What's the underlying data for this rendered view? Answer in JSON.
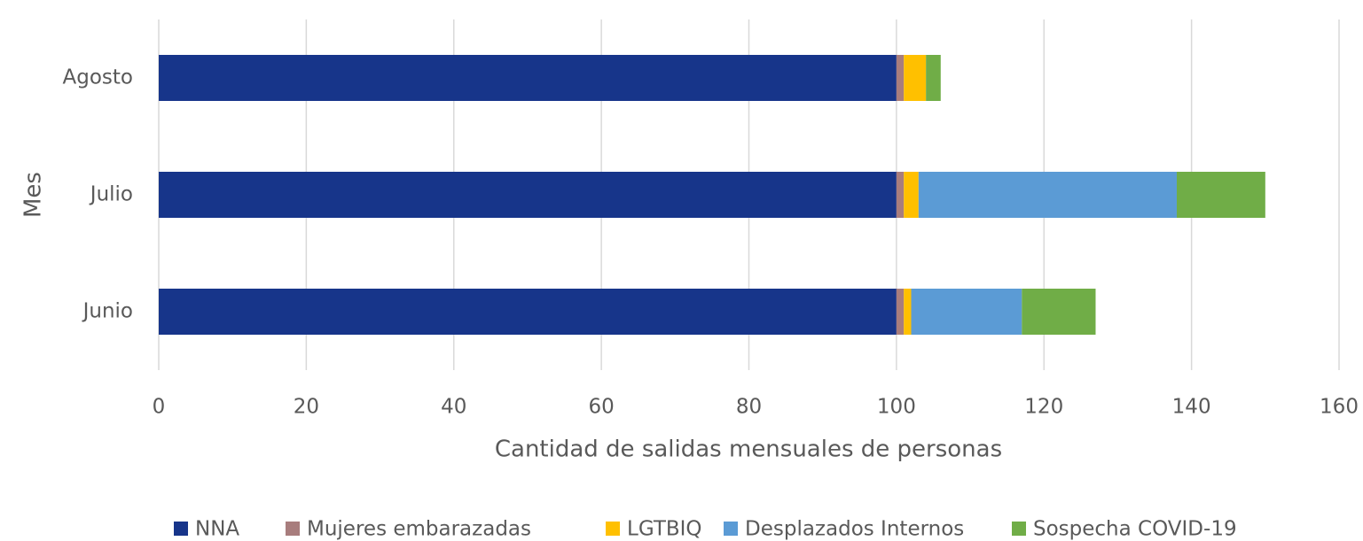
{
  "chart_data": {
    "type": "stacked-bar-horizontal",
    "x_axis_label": "Cantidad de salidas mensuales de personas",
    "y_axis_label": "Mes",
    "categories": [
      "Junio",
      "Julio",
      "Agosto"
    ],
    "series": [
      {
        "name": "NNA",
        "color": "#17358a",
        "values": [
          100,
          100,
          100
        ]
      },
      {
        "name": "Mujeres embarazadas",
        "color": "#a87d7d",
        "values": [
          1,
          1,
          1
        ]
      },
      {
        "name": "LGTBIQ",
        "color": "#ffc000",
        "values": [
          1,
          2,
          3
        ]
      },
      {
        "name": "Desplazados Internos",
        "color": "#5b9bd5",
        "values": [
          15,
          35,
          0
        ]
      },
      {
        "name": "Sospecha COVID-19",
        "color": "#70ad47",
        "values": [
          10,
          12,
          2
        ]
      }
    ],
    "xlim": [
      0,
      160
    ],
    "xticks": [
      0,
      20,
      40,
      60,
      80,
      100,
      120,
      140,
      160
    ],
    "grid": true,
    "legend": "bottom"
  }
}
